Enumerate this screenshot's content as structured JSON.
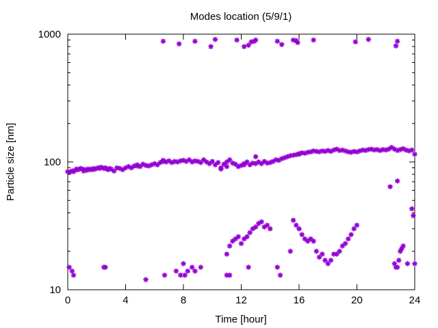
{
  "chart_data": {
    "type": "scatter",
    "title": "Modes location (5/9/1)",
    "xlabel": "Time [hour]",
    "ylabel": "Particle size [nm]",
    "xlim": [
      0,
      24
    ],
    "ylim": [
      10,
      1000
    ],
    "yscale": "log",
    "xticks": [
      0,
      4,
      8,
      12,
      16,
      20,
      24
    ],
    "xtick_labels": [
      "0",
      "4",
      "8",
      "12",
      "16",
      "20",
      "24"
    ],
    "yticks": [
      10,
      100,
      1000
    ],
    "ytick_labels": [
      "10",
      "100",
      "1000"
    ],
    "grid": false,
    "legend": "none",
    "marker_color": "#9400d3",
    "marker": "star",
    "series": [
      {
        "values": [
          [
            0.0,
            84
          ],
          [
            0.1,
            83
          ],
          [
            0.2,
            84
          ],
          [
            0.3,
            85
          ],
          [
            0.4,
            84
          ],
          [
            0.5,
            86
          ],
          [
            0.6,
            88
          ],
          [
            0.7,
            87
          ],
          [
            0.8,
            88
          ],
          [
            0.9,
            89
          ],
          [
            1.0,
            88
          ],
          [
            1.1,
            85
          ],
          [
            1.2,
            87
          ],
          [
            1.3,
            86
          ],
          [
            1.4,
            88
          ],
          [
            1.5,
            87
          ],
          [
            1.6,
            88
          ],
          [
            1.7,
            87
          ],
          [
            1.8,
            89
          ],
          [
            1.9,
            88
          ],
          [
            2.0,
            89
          ],
          [
            2.1,
            90
          ],
          [
            2.2,
            89
          ],
          [
            2.3,
            91
          ],
          [
            2.4,
            90
          ],
          [
            2.5,
            89
          ],
          [
            2.6,
            90
          ],
          [
            2.7,
            88
          ],
          [
            2.8,
            87
          ],
          [
            2.9,
            89
          ],
          [
            3.0,
            88
          ],
          [
            3.2,
            85
          ],
          [
            3.4,
            90
          ],
          [
            3.6,
            89
          ],
          [
            3.8,
            87
          ],
          [
            4.0,
            90
          ],
          [
            4.2,
            92
          ],
          [
            4.4,
            90
          ],
          [
            4.6,
            93
          ],
          [
            4.8,
            95
          ],
          [
            5.0,
            92
          ],
          [
            5.2,
            96
          ],
          [
            5.4,
            94
          ],
          [
            5.6,
            93
          ],
          [
            5.8,
            95
          ],
          [
            6.0,
            97
          ],
          [
            6.2,
            95
          ],
          [
            6.4,
            99
          ],
          [
            6.6,
            101
          ],
          [
            6.8,
            100
          ],
          [
            7.0,
            102
          ],
          [
            7.2,
            99
          ],
          [
            7.4,
            101
          ],
          [
            7.6,
            100
          ],
          [
            7.8,
            102
          ],
          [
            8.0,
            103
          ],
          [
            8.2,
            101
          ],
          [
            8.4,
            104
          ],
          [
            8.6,
            100
          ],
          [
            8.8,
            102
          ],
          [
            9.0,
            101
          ],
          [
            9.2,
            99
          ],
          [
            9.4,
            104
          ],
          [
            9.6,
            100
          ],
          [
            9.8,
            97
          ],
          [
            10.0,
            101
          ],
          [
            10.2,
            95
          ],
          [
            10.4,
            99
          ],
          [
            10.6,
            90
          ],
          [
            10.8,
            96
          ],
          [
            11.0,
            100
          ],
          [
            11.2,
            104
          ],
          [
            11.4,
            98
          ],
          [
            11.6,
            96
          ],
          [
            11.8,
            92
          ],
          [
            12.0,
            94
          ],
          [
            12.2,
            97
          ],
          [
            12.4,
            100
          ],
          [
            12.6,
            95
          ],
          [
            12.8,
            98
          ],
          [
            13.0,
            97
          ],
          [
            13.2,
            100
          ],
          [
            13.4,
            97
          ],
          [
            13.6,
            101
          ],
          [
            13.8,
            98
          ],
          [
            14.0,
            99
          ],
          [
            14.2,
            101
          ],
          [
            14.4,
            104
          ],
          [
            14.6,
            103
          ],
          [
            14.8,
            106
          ],
          [
            15.0,
            108
          ],
          [
            15.2,
            110
          ],
          [
            15.4,
            112
          ],
          [
            15.6,
            113
          ],
          [
            15.8,
            114
          ],
          [
            16.0,
            116
          ],
          [
            16.2,
            118
          ],
          [
            16.4,
            117
          ],
          [
            16.6,
            119
          ],
          [
            16.8,
            120
          ],
          [
            17.0,
            122
          ],
          [
            17.2,
            121
          ],
          [
            17.4,
            120
          ],
          [
            17.6,
            122
          ],
          [
            17.8,
            121
          ],
          [
            18.0,
            123
          ],
          [
            18.2,
            121
          ],
          [
            18.4,
            124
          ],
          [
            18.6,
            126
          ],
          [
            18.8,
            123
          ],
          [
            19.0,
            124
          ],
          [
            19.2,
            122
          ],
          [
            19.4,
            120
          ],
          [
            19.6,
            119
          ],
          [
            19.8,
            121
          ],
          [
            20.0,
            120
          ],
          [
            20.2,
            122
          ],
          [
            20.4,
            124
          ],
          [
            20.6,
            123
          ],
          [
            20.8,
            125
          ],
          [
            21.0,
            126
          ],
          [
            21.2,
            124
          ],
          [
            21.4,
            125
          ],
          [
            21.6,
            123
          ],
          [
            21.8,
            125
          ],
          [
            22.0,
            124
          ],
          [
            22.2,
            126
          ],
          [
            22.4,
            130
          ],
          [
            22.6,
            126
          ],
          [
            22.8,
            123
          ],
          [
            23.0,
            125
          ],
          [
            23.2,
            127
          ],
          [
            23.4,
            124
          ],
          [
            23.6,
            122
          ],
          [
            23.8,
            124
          ],
          [
            24.0,
            115
          ],
          [
            4.8,
            93
          ],
          [
            6.6,
            103
          ],
          [
            10.6,
            88
          ],
          [
            11.0,
            92
          ],
          [
            12.2,
            95
          ],
          [
            13.0,
            110
          ],
          [
            16.0,
            115
          ],
          [
            6.6,
            880
          ],
          [
            7.7,
            840
          ],
          [
            8.8,
            880
          ],
          [
            9.9,
            800
          ],
          [
            10.2,
            910
          ],
          [
            11.7,
            900
          ],
          [
            12.2,
            800
          ],
          [
            12.5,
            820
          ],
          [
            12.7,
            870
          ],
          [
            12.9,
            880
          ],
          [
            13.0,
            900
          ],
          [
            14.5,
            880
          ],
          [
            14.8,
            830
          ],
          [
            15.6,
            900
          ],
          [
            15.8,
            890
          ],
          [
            15.9,
            860
          ],
          [
            17.0,
            900
          ],
          [
            19.9,
            870
          ],
          [
            20.8,
            910
          ],
          [
            22.7,
            810
          ],
          [
            22.8,
            880
          ],
          [
            0.1,
            15
          ],
          [
            0.3,
            14
          ],
          [
            0.4,
            13
          ],
          [
            2.5,
            15
          ],
          [
            2.6,
            15
          ],
          [
            5.4,
            12
          ],
          [
            6.7,
            13
          ],
          [
            7.5,
            14
          ],
          [
            7.8,
            13
          ],
          [
            8.0,
            16
          ],
          [
            8.1,
            13
          ],
          [
            8.3,
            14
          ],
          [
            8.6,
            15
          ],
          [
            8.8,
            14
          ],
          [
            9.2,
            15
          ],
          [
            11.0,
            13
          ],
          [
            11.2,
            13
          ],
          [
            12.5,
            15
          ],
          [
            14.5,
            15
          ],
          [
            14.7,
            13
          ],
          [
            11.0,
            19
          ],
          [
            11.2,
            22
          ],
          [
            11.4,
            24
          ],
          [
            11.6,
            25
          ],
          [
            11.8,
            26
          ],
          [
            12.0,
            23
          ],
          [
            12.2,
            25
          ],
          [
            12.4,
            26
          ],
          [
            12.6,
            28
          ],
          [
            12.8,
            30
          ],
          [
            13.0,
            31
          ],
          [
            13.2,
            33
          ],
          [
            13.4,
            34
          ],
          [
            13.6,
            31
          ],
          [
            13.8,
            32
          ],
          [
            14.0,
            30
          ],
          [
            15.4,
            20
          ],
          [
            15.6,
            35
          ],
          [
            15.8,
            32
          ],
          [
            16.0,
            30
          ],
          [
            16.2,
            27
          ],
          [
            16.4,
            25
          ],
          [
            16.6,
            24
          ],
          [
            16.8,
            25
          ],
          [
            17.0,
            24
          ],
          [
            17.2,
            20
          ],
          [
            17.4,
            18
          ],
          [
            17.6,
            19
          ],
          [
            17.8,
            17
          ],
          [
            18.0,
            16
          ],
          [
            18.2,
            17
          ],
          [
            18.4,
            19
          ],
          [
            18.6,
            19
          ],
          [
            18.8,
            20
          ],
          [
            19.0,
            22
          ],
          [
            19.2,
            23
          ],
          [
            19.4,
            25
          ],
          [
            19.6,
            27
          ],
          [
            19.8,
            30
          ],
          [
            20.0,
            32
          ],
          [
            22.3,
            64
          ],
          [
            22.8,
            71
          ],
          [
            22.6,
            16
          ],
          [
            22.7,
            15
          ],
          [
            22.8,
            15
          ],
          [
            22.9,
            17
          ],
          [
            23.0,
            20
          ],
          [
            23.1,
            21
          ],
          [
            23.2,
            22
          ],
          [
            23.5,
            16
          ],
          [
            23.8,
            43
          ],
          [
            23.9,
            38
          ],
          [
            24.0,
            16
          ]
        ]
      }
    ]
  }
}
